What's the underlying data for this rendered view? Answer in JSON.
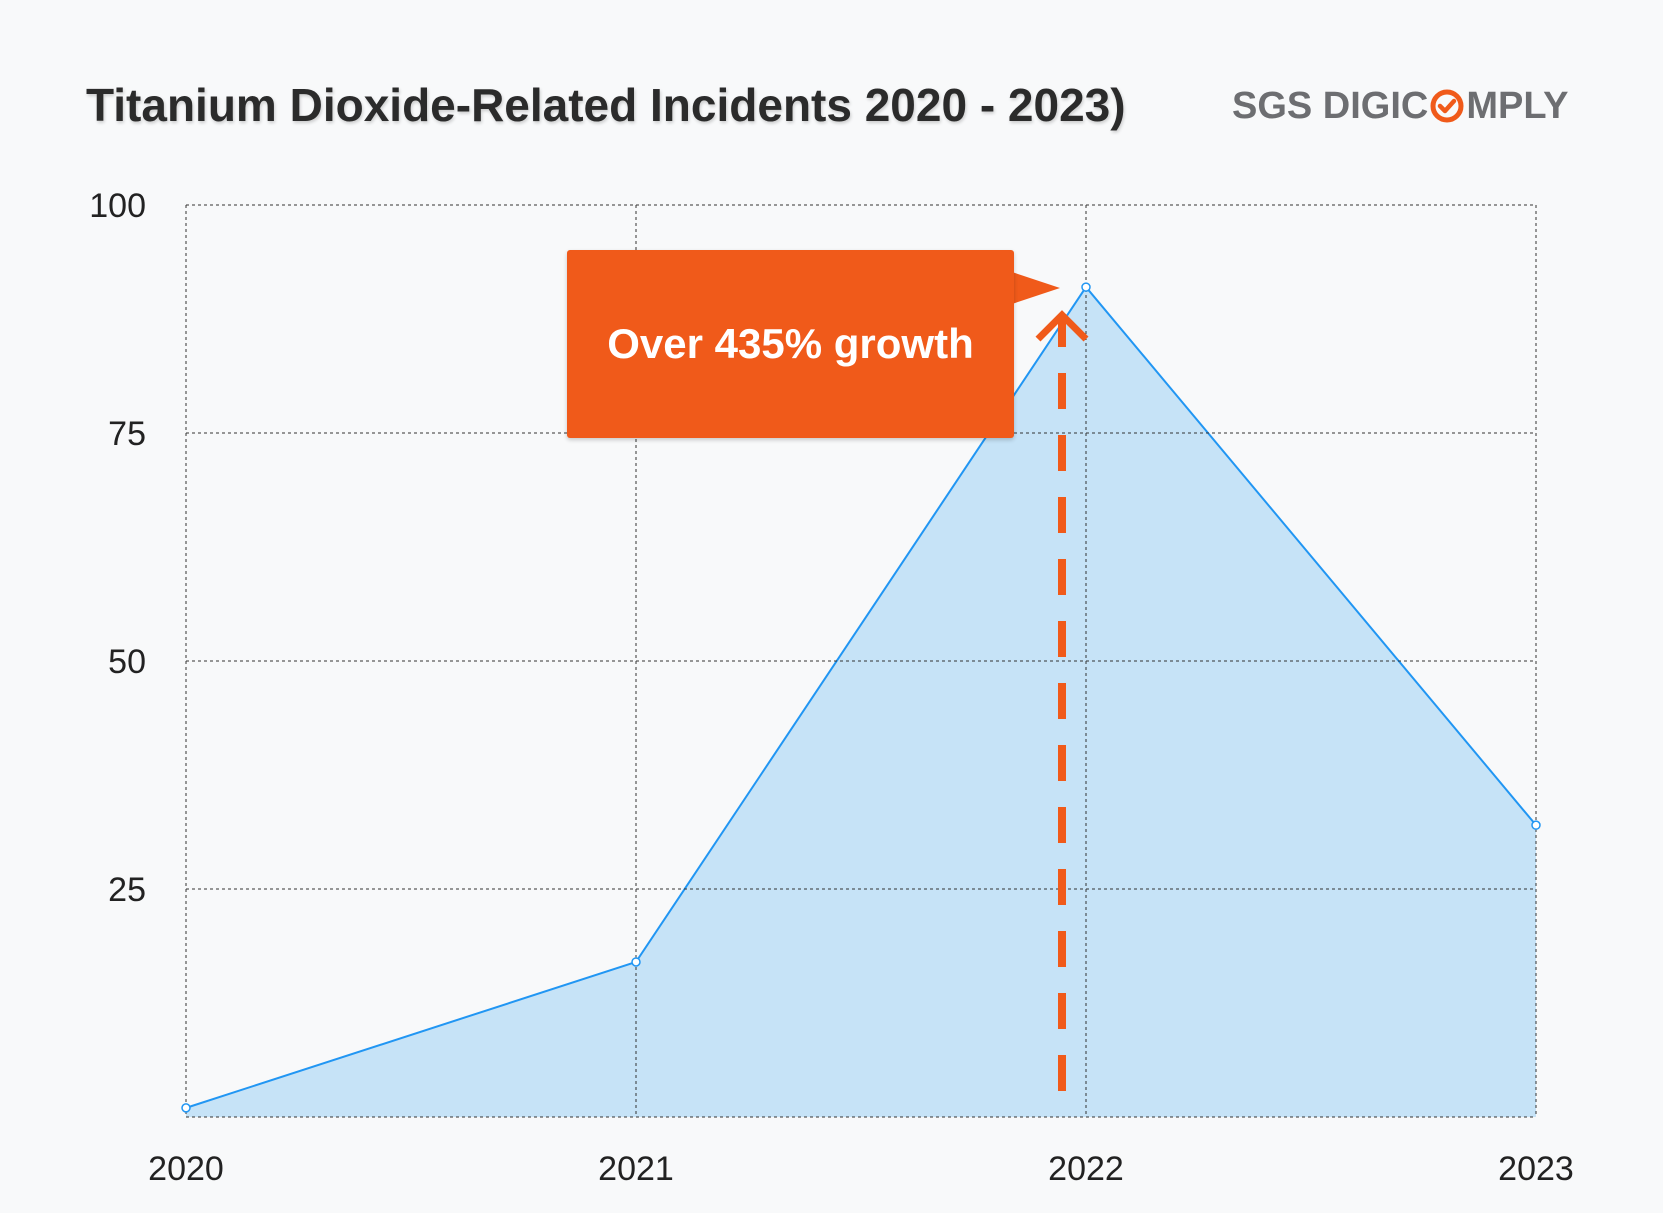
{
  "header": {
    "title": "Titanium Dioxide-Related Incidents  2020 - 2023)",
    "brand_prefix": "SGS DIGIC",
    "brand_suffix": "MPLY",
    "brand_icon": "check-circle-icon"
  },
  "annotation": {
    "text": "Over 435% growth",
    "color": "#f05a1a",
    "target_category": "2022"
  },
  "colors": {
    "line": "#2196f3",
    "fill": "#c6e3f7",
    "accent": "#f05a1a",
    "grid": "#333333"
  },
  "chart_data": {
    "type": "area",
    "title": "Titanium Dioxide-Related Incidents  2020 - 2023)",
    "categories": [
      "2020",
      "2021",
      "2022",
      "2023"
    ],
    "series": [
      {
        "name": "Incidents",
        "values": [
          1,
          17,
          91,
          32
        ]
      }
    ],
    "ylim": [
      0,
      100
    ],
    "yticks": [
      25,
      50,
      75,
      100
    ],
    "xlabel": "",
    "ylabel": "",
    "grid": true,
    "legend": "none"
  }
}
